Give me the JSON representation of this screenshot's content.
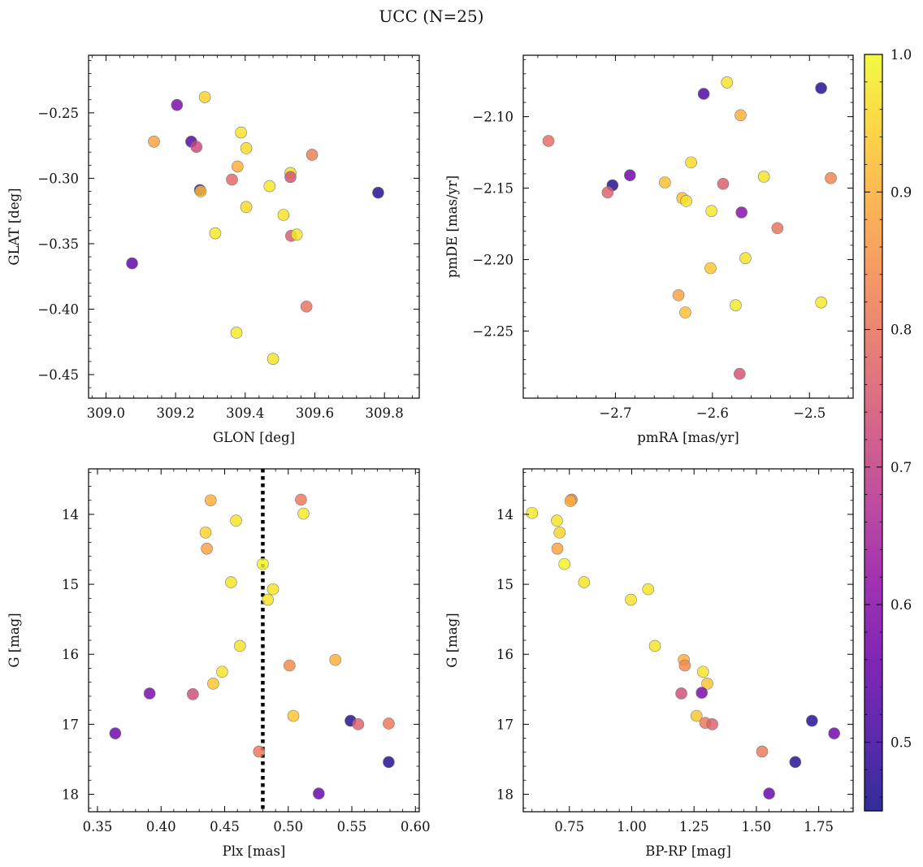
{
  "title": "UCC (N=25)",
  "colorbar": {
    "range": [
      0.45,
      1.0
    ],
    "ticks": [
      0.5,
      0.6,
      0.7,
      0.8,
      0.9,
      1.0
    ],
    "tick_labels": [
      "0.5",
      "0.6",
      "0.7",
      "0.8",
      "0.9",
      "1.0"
    ],
    "colormap": "plasma"
  },
  "chart_data": [
    {
      "type": "scatter",
      "xlabel": "GLON [deg]",
      "ylabel": "GLAT [deg]",
      "xlim": [
        308.95,
        309.9
      ],
      "ylim": [
        -0.468,
        -0.206
      ],
      "y_inverted": false,
      "xticks": [
        309.0,
        309.2,
        309.4,
        309.6,
        309.8
      ],
      "xtick_labels": [
        "309.0",
        "309.2",
        "309.4",
        "309.6",
        "309.8"
      ],
      "yticks": [
        -0.45,
        -0.4,
        -0.35,
        -0.3,
        -0.25
      ],
      "ytick_labels": [
        "−0.45",
        "−0.40",
        "−0.35",
        "−0.30",
        "−0.25"
      ],
      "points": [
        {
          "x": 309.204,
          "y": -0.244,
          "c": 0.58
        },
        {
          "x": 309.284,
          "y": -0.238,
          "c": 0.95
        },
        {
          "x": 309.388,
          "y": -0.265,
          "c": 0.97
        },
        {
          "x": 309.403,
          "y": -0.277,
          "c": 0.96
        },
        {
          "x": 309.138,
          "y": -0.272,
          "c": 0.88
        },
        {
          "x": 309.245,
          "y": -0.272,
          "c": 0.52
        },
        {
          "x": 309.26,
          "y": -0.276,
          "c": 0.72
        },
        {
          "x": 309.592,
          "y": -0.282,
          "c": 0.82
        },
        {
          "x": 309.378,
          "y": -0.291,
          "c": 0.9
        },
        {
          "x": 309.53,
          "y": -0.296,
          "c": 0.97
        },
        {
          "x": 309.53,
          "y": -0.299,
          "c": 0.74
        },
        {
          "x": 309.362,
          "y": -0.301,
          "c": 0.78
        },
        {
          "x": 309.47,
          "y": -0.306,
          "c": 0.98
        },
        {
          "x": 309.27,
          "y": -0.309,
          "c": 0.47
        },
        {
          "x": 309.272,
          "y": -0.31,
          "c": 0.92
        },
        {
          "x": 309.782,
          "y": -0.311,
          "c": 0.47
        },
        {
          "x": 309.403,
          "y": -0.322,
          "c": 0.96
        },
        {
          "x": 309.51,
          "y": -0.328,
          "c": 0.97
        },
        {
          "x": 309.314,
          "y": -0.342,
          "c": 0.98
        },
        {
          "x": 309.532,
          "y": -0.344,
          "c": 0.76
        },
        {
          "x": 309.548,
          "y": -0.343,
          "c": 0.98
        },
        {
          "x": 309.075,
          "y": -0.365,
          "c": 0.54
        },
        {
          "x": 309.576,
          "y": -0.398,
          "c": 0.8
        },
        {
          "x": 309.375,
          "y": -0.418,
          "c": 0.98
        },
        {
          "x": 309.48,
          "y": -0.438,
          "c": 0.97
        }
      ]
    },
    {
      "type": "scatter",
      "xlabel": "pmRA [mas/yr]",
      "ylabel": "pmDE [mas/yr]",
      "xlim": [
        -2.795,
        -2.455
      ],
      "ylim": [
        -2.297,
        -2.057
      ],
      "y_inverted": false,
      "xticks": [
        -2.7,
        -2.6,
        -2.5
      ],
      "xtick_labels": [
        "−2.7",
        "−2.6",
        "−2.5"
      ],
      "yticks": [
        -2.25,
        -2.2,
        -2.15,
        -2.1
      ],
      "ytick_labels": [
        "−2.25",
        "−2.20",
        "−2.15",
        "−2.10"
      ],
      "points": [
        {
          "x": -2.585,
          "y": -2.076,
          "c": 0.97
        },
        {
          "x": -2.488,
          "y": -2.08,
          "c": 0.47
        },
        {
          "x": -2.609,
          "y": -2.084,
          "c": 0.52
        },
        {
          "x": -2.571,
          "y": -2.099,
          "c": 0.9
        },
        {
          "x": -2.769,
          "y": -2.117,
          "c": 0.79
        },
        {
          "x": -2.622,
          "y": -2.132,
          "c": 0.96
        },
        {
          "x": -2.685,
          "y": -2.141,
          "c": 0.56
        },
        {
          "x": -2.547,
          "y": -2.142,
          "c": 0.97
        },
        {
          "x": -2.478,
          "y": -2.143,
          "c": 0.83
        },
        {
          "x": -2.649,
          "y": -2.146,
          "c": 0.92
        },
        {
          "x": -2.589,
          "y": -2.147,
          "c": 0.76
        },
        {
          "x": -2.703,
          "y": -2.148,
          "c": 0.47
        },
        {
          "x": -2.708,
          "y": -2.153,
          "c": 0.77
        },
        {
          "x": -2.631,
          "y": -2.157,
          "c": 0.92
        },
        {
          "x": -2.627,
          "y": -2.159,
          "c": 0.97
        },
        {
          "x": -2.601,
          "y": -2.166,
          "c": 0.98
        },
        {
          "x": -2.57,
          "y": -2.167,
          "c": 0.6
        },
        {
          "x": -2.533,
          "y": -2.178,
          "c": 0.8
        },
        {
          "x": -2.566,
          "y": -2.199,
          "c": 0.97
        },
        {
          "x": -2.602,
          "y": -2.206,
          "c": 0.93
        },
        {
          "x": -2.635,
          "y": -2.225,
          "c": 0.88
        },
        {
          "x": -2.488,
          "y": -2.23,
          "c": 0.98
        },
        {
          "x": -2.576,
          "y": -2.232,
          "c": 0.98
        },
        {
          "x": -2.628,
          "y": -2.237,
          "c": 0.92
        },
        {
          "x": -2.572,
          "y": -2.28,
          "c": 0.74
        }
      ]
    },
    {
      "type": "scatter",
      "xlabel": "Plx [mas]",
      "ylabel": "G [mag]",
      "xlim": [
        0.343,
        0.603
      ],
      "ylim": [
        18.25,
        13.35
      ],
      "y_inverted": true,
      "xticks": [
        0.35,
        0.4,
        0.45,
        0.5,
        0.55,
        0.6
      ],
      "xtick_labels": [
        "0.35",
        "0.40",
        "0.45",
        "0.50",
        "0.55",
        "0.60"
      ],
      "yticks": [
        14,
        15,
        16,
        17,
        18
      ],
      "ytick_labels": [
        "14",
        "15",
        "16",
        "17",
        "18"
      ],
      "vline": {
        "x": 0.48,
        "style": "dotted",
        "color": "#000000"
      },
      "points": [
        {
          "x": 0.439,
          "y": 13.8,
          "c": 0.9
        },
        {
          "x": 0.51,
          "y": 13.79,
          "c": 0.81
        },
        {
          "x": 0.512,
          "y": 13.99,
          "c": 0.98
        },
        {
          "x": 0.459,
          "y": 14.09,
          "c": 0.97
        },
        {
          "x": 0.435,
          "y": 14.26,
          "c": 0.95
        },
        {
          "x": 0.436,
          "y": 14.49,
          "c": 0.88
        },
        {
          "x": 0.48,
          "y": 14.71,
          "c": 0.99
        },
        {
          "x": 0.455,
          "y": 14.97,
          "c": 0.97
        },
        {
          "x": 0.488,
          "y": 15.07,
          "c": 0.97
        },
        {
          "x": 0.484,
          "y": 15.22,
          "c": 0.97
        },
        {
          "x": 0.462,
          "y": 15.88,
          "c": 0.97
        },
        {
          "x": 0.537,
          "y": 16.08,
          "c": 0.9
        },
        {
          "x": 0.501,
          "y": 16.16,
          "c": 0.84
        },
        {
          "x": 0.448,
          "y": 16.25,
          "c": 0.97
        },
        {
          "x": 0.441,
          "y": 16.42,
          "c": 0.93
        },
        {
          "x": 0.391,
          "y": 16.56,
          "c": 0.58
        },
        {
          "x": 0.425,
          "y": 16.57,
          "c": 0.73
        },
        {
          "x": 0.504,
          "y": 16.88,
          "c": 0.93
        },
        {
          "x": 0.549,
          "y": 16.95,
          "c": 0.47
        },
        {
          "x": 0.555,
          "y": 17.0,
          "c": 0.77
        },
        {
          "x": 0.579,
          "y": 16.99,
          "c": 0.81
        },
        {
          "x": 0.364,
          "y": 17.13,
          "c": 0.56
        },
        {
          "x": 0.477,
          "y": 17.39,
          "c": 0.81
        },
        {
          "x": 0.579,
          "y": 17.54,
          "c": 0.47
        },
        {
          "x": 0.524,
          "y": 17.99,
          "c": 0.55
        }
      ]
    },
    {
      "type": "scatter",
      "xlabel": "BP-RP [mag]",
      "ylabel": "G [mag]",
      "xlim": [
        0.565,
        1.888
      ],
      "ylim": [
        18.25,
        13.35
      ],
      "y_inverted": true,
      "xticks": [
        0.75,
        1.0,
        1.25,
        1.5,
        1.75
      ],
      "xtick_labels": [
        "0.75",
        "1.00",
        "1.25",
        "1.50",
        "1.75"
      ],
      "yticks": [
        14,
        15,
        16,
        17,
        18
      ],
      "ytick_labels": [
        "14",
        "15",
        "16",
        "17",
        "18"
      ],
      "points": [
        {
          "x": 0.759,
          "y": 13.79,
          "c": 0.81
        },
        {
          "x": 0.754,
          "y": 13.81,
          "c": 0.9
        },
        {
          "x": 0.6,
          "y": 13.98,
          "c": 0.98
        },
        {
          "x": 0.7,
          "y": 14.09,
          "c": 0.97
        },
        {
          "x": 0.711,
          "y": 14.26,
          "c": 0.95
        },
        {
          "x": 0.702,
          "y": 14.49,
          "c": 0.88
        },
        {
          "x": 0.73,
          "y": 14.71,
          "c": 0.99
        },
        {
          "x": 0.809,
          "y": 14.97,
          "c": 0.97
        },
        {
          "x": 1.066,
          "y": 15.07,
          "c": 0.97
        },
        {
          "x": 0.997,
          "y": 15.22,
          "c": 0.97
        },
        {
          "x": 1.093,
          "y": 15.88,
          "c": 0.97
        },
        {
          "x": 1.209,
          "y": 16.08,
          "c": 0.9
        },
        {
          "x": 1.213,
          "y": 16.16,
          "c": 0.84
        },
        {
          "x": 1.286,
          "y": 16.25,
          "c": 0.97
        },
        {
          "x": 1.303,
          "y": 16.42,
          "c": 0.93
        },
        {
          "x": 1.199,
          "y": 16.56,
          "c": 0.73
        },
        {
          "x": 1.281,
          "y": 16.55,
          "c": 0.58
        },
        {
          "x": 1.26,
          "y": 16.88,
          "c": 0.93
        },
        {
          "x": 1.295,
          "y": 16.98,
          "c": 0.81
        },
        {
          "x": 1.323,
          "y": 17.0,
          "c": 0.77
        },
        {
          "x": 1.723,
          "y": 16.95,
          "c": 0.47
        },
        {
          "x": 1.812,
          "y": 17.13,
          "c": 0.56
        },
        {
          "x": 1.523,
          "y": 17.39,
          "c": 0.81
        },
        {
          "x": 1.656,
          "y": 17.54,
          "c": 0.47
        },
        {
          "x": 1.551,
          "y": 17.99,
          "c": 0.55
        }
      ]
    }
  ]
}
